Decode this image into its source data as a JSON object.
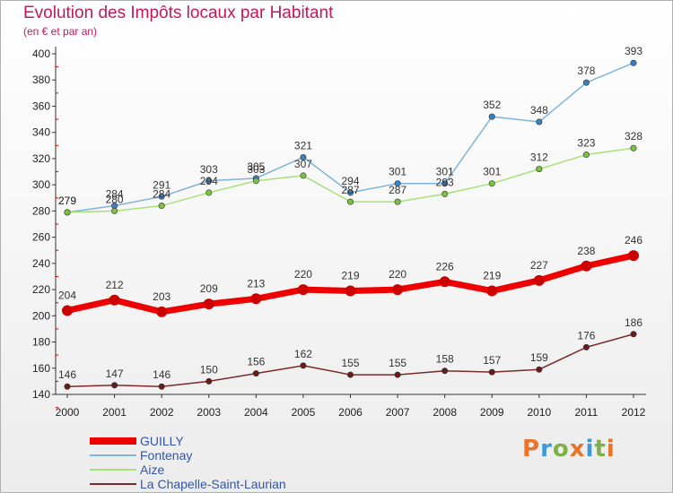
{
  "title": "Evolution des Impôts locaux par Habitant",
  "subtitle": "(en € et par an)",
  "logo": {
    "letters": [
      "P",
      "r",
      "o",
      "x",
      "i",
      "t",
      "i"
    ],
    "colors": [
      "#e8732a",
      "#3a9ad9",
      "#7cb342",
      "#e8732a",
      "#3a9ad9",
      "#7cb342",
      "#e8732a"
    ]
  },
  "chart_data": {
    "type": "line",
    "title": "Evolution des Impôts locaux par Habitant",
    "subtitle": "(en € et par an)",
    "xlabel": "",
    "ylabel": "",
    "ylim": [
      140,
      400
    ],
    "y_ticks": [
      140,
      160,
      180,
      200,
      220,
      240,
      260,
      280,
      300,
      320,
      340,
      360,
      380,
      400
    ],
    "grid": false,
    "legend_position": "bottom-left",
    "categories": [
      "2000",
      "2001",
      "2002",
      "2003",
      "2004",
      "2005",
      "2006",
      "2007",
      "2008",
      "2009",
      "2010",
      "2011",
      "2012"
    ],
    "series": [
      {
        "name": "GUILLY",
        "color": "#ee0000",
        "marker": "#cc0000",
        "emphasis": true,
        "values": [
          204,
          212,
          203,
          209,
          213,
          220,
          219,
          220,
          226,
          219,
          227,
          238,
          246
        ]
      },
      {
        "name": "Fontenay",
        "color": "#7fb3d9",
        "marker": "#3d7fc4",
        "values": [
          279,
          284,
          291,
          303,
          305,
          321,
          294,
          301,
          301,
          352,
          348,
          378,
          393
        ]
      },
      {
        "name": "Aize",
        "color": "#a8e07a",
        "marker": "#7cc242",
        "values": [
          279,
          280,
          284,
          294,
          303,
          307,
          287,
          287,
          293,
          301,
          312,
          323,
          328
        ]
      },
      {
        "name": "La Chapelle-Saint-Laurian",
        "color": "#7a2a2a",
        "marker": "#6a1a1a",
        "values": [
          146,
          147,
          146,
          150,
          156,
          162,
          155,
          155,
          158,
          157,
          159,
          176,
          186
        ]
      }
    ]
  }
}
